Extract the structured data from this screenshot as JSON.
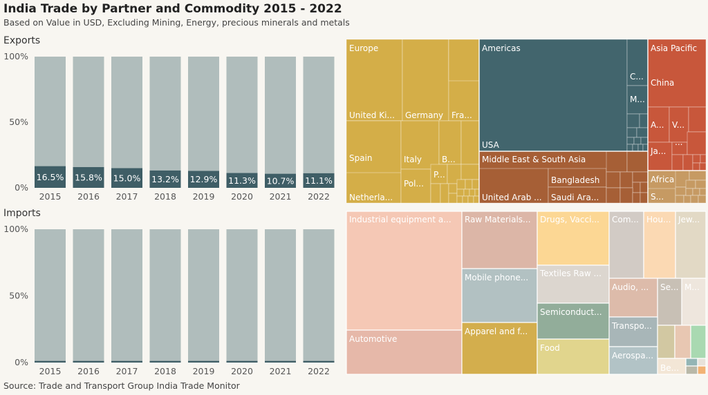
{
  "title": "India Trade by Partner and Commodity 2015 - 2022",
  "subtitle": "Based on Value in USD, Excluding Mining, Energy, precious minerals and metals",
  "source": "Source: Trade and Transport Group India Trade Monitor",
  "colors": {
    "bar_bg": "#b0bdbc",
    "bar_fg": "#3f5e66",
    "page_bg": "#f8f6f1"
  },
  "chart_data": [
    {
      "type": "bar",
      "title": "Exports",
      "categories": [
        "2015",
        "2016",
        "2017",
        "2018",
        "2019",
        "2020",
        "2021",
        "2022"
      ],
      "values": [
        16.5,
        15.8,
        15.0,
        13.2,
        12.9,
        11.3,
        10.7,
        11.1
      ],
      "value_labels": [
        "16.5%",
        "15.8%",
        "15.0%",
        "13.2%",
        "12.9%",
        "11.3%",
        "10.7%",
        "11.1%"
      ],
      "ylim": [
        0,
        100
      ],
      "yticks": [
        "0%",
        "50%",
        "100%"
      ]
    },
    {
      "type": "bar",
      "title": "Imports",
      "categories": [
        "2015",
        "2016",
        "2017",
        "2018",
        "2019",
        "2020",
        "2021",
        "2022"
      ],
      "values": [
        1.2,
        1.2,
        1.2,
        1.2,
        1.2,
        1.2,
        1.2,
        1.2
      ],
      "ylim": [
        0,
        100
      ],
      "yticks": [
        "0%",
        "50%",
        "100%"
      ]
    }
  ],
  "partner_treemap": {
    "regions": [
      {
        "name": "Europe",
        "color": "#d4ae48",
        "children": [
          "United Ki...",
          "Germany",
          "Fra...",
          "Spain",
          "Italy",
          "B...",
          "Netherla...",
          "Pol...",
          "P..."
        ]
      },
      {
        "name": "Americas",
        "color": "#42656d",
        "children": [
          "USA",
          "C...",
          "M..."
        ]
      },
      {
        "name": "Asia Pacific",
        "color": "#c8573b",
        "children": [
          "China",
          "A...",
          "V...",
          "Ja...",
          "..."
        ]
      },
      {
        "name": "Middle East & South Asia",
        "color": "#a65f36",
        "children": [
          "Bangladesh",
          "United Arab ...",
          "Saudi Ara..."
        ]
      },
      {
        "name": "Africa",
        "color": "#c69a63",
        "children": [
          "S..."
        ]
      }
    ]
  },
  "commodity_treemap": [
    {
      "label": "Industrial equipment a...",
      "color": "#f5c8b5"
    },
    {
      "label": "Automotive",
      "color": "#e6b8a9"
    },
    {
      "label": "Raw Materials...",
      "color": "#dcb6a7"
    },
    {
      "label": "Mobile phone...",
      "color": "#b2c1c2"
    },
    {
      "label": "Apparel and f...",
      "color": "#d3ae4d"
    },
    {
      "label": "Drugs, Vacci...",
      "color": "#fcd794"
    },
    {
      "label": "Textiles Raw ...",
      "color": "#dcd6cf"
    },
    {
      "label": "Semiconduct...",
      "color": "#92ad9a"
    },
    {
      "label": "Food",
      "color": "#e1d58d"
    },
    {
      "label": "Com...",
      "color": "#d2cbc5"
    },
    {
      "label": "Hou...",
      "color": "#fbd9b3"
    },
    {
      "label": "Jew...",
      "color": "#e2d9c5"
    },
    {
      "label": "Audio, ...",
      "color": "#ddbbaa"
    },
    {
      "label": "Se...",
      "color": "#c8c0b5"
    },
    {
      "label": "M...",
      "color": "#eee6dd"
    },
    {
      "label": "Transpo...",
      "color": "#a8b6b8"
    },
    {
      "label": "Aerospa...",
      "color": "#b2c3c6"
    },
    {
      "label": "Be...",
      "color": "#f3e6d6"
    }
  ]
}
